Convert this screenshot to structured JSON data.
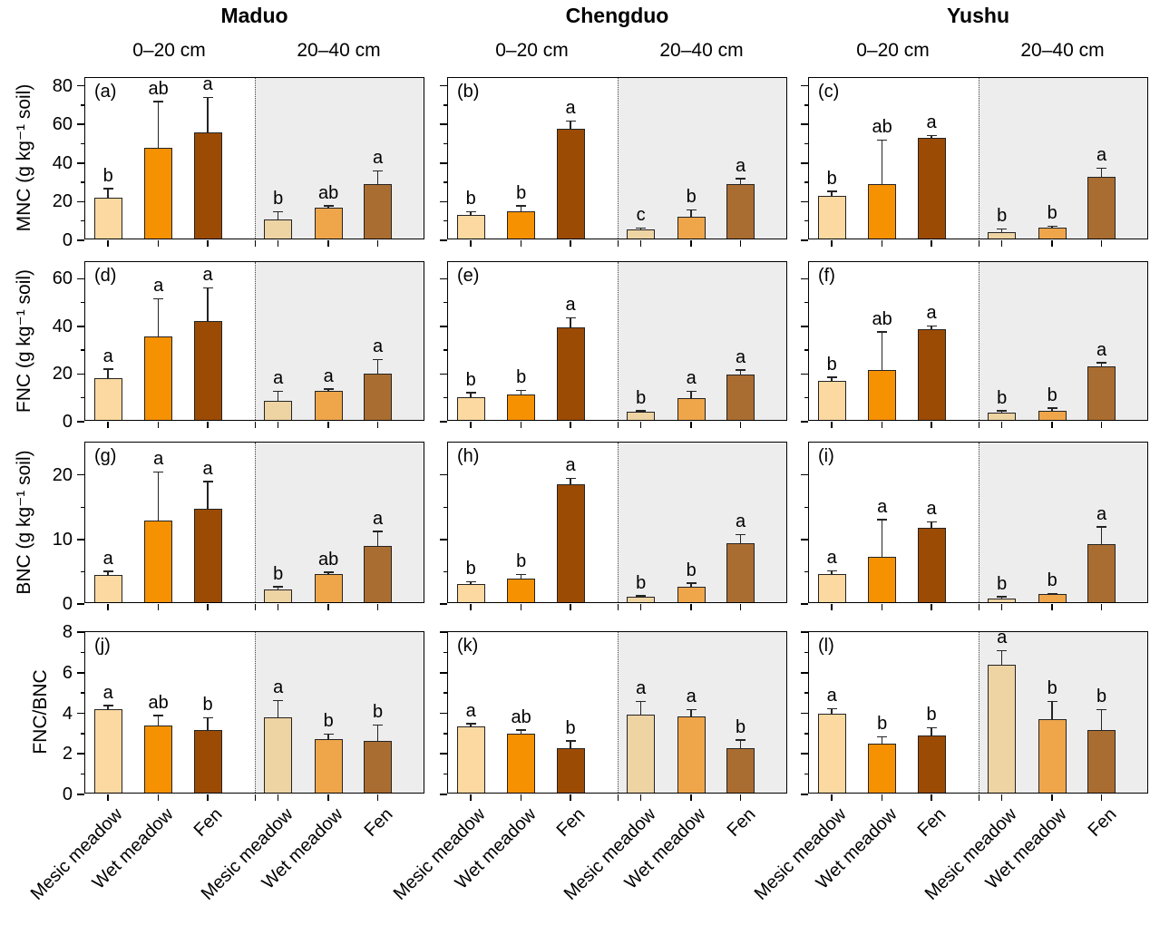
{
  "figure": {
    "sites": [
      "Maduo",
      "Chengduo",
      "Yushu"
    ],
    "depth_labels": [
      "0–20 cm",
      "20–40 cm"
    ],
    "group_labels": [
      "Mesic meadow",
      "Wet meadow",
      "Fen"
    ],
    "colors": {
      "depth_0_20_fills": [
        "#fcd9a0",
        "#f69102",
        "#9c4b05"
      ],
      "depth_20_40_fills": [
        "#eed3a3",
        "#efa64b",
        "#aa6d31"
      ],
      "shade_background": "#ededed",
      "axis": "#000000"
    }
  },
  "chart_data": [
    {
      "type": "bar",
      "ylabel": "MNC (g kg⁻¹ soil)",
      "ylim": [
        0,
        84
      ],
      "yticks_major": [
        0,
        20,
        40,
        60,
        80
      ],
      "yticks_minor": [
        10,
        30,
        50,
        70
      ],
      "categories": [
        "Mesic meadow",
        "Wet meadow",
        "Fen"
      ],
      "panels": [
        {
          "label": "(a)",
          "site": "Maduo",
          "depths": [
            {
              "depth": "0–20 cm",
              "values": [
                21,
                47,
                55
              ],
              "errors": [
                5,
                24,
                18
              ],
              "letters": [
                "b",
                "ab",
                "a"
              ]
            },
            {
              "depth": "20–40 cm",
              "values": [
                10,
                16,
                28
              ],
              "errors": [
                4,
                1,
                7
              ],
              "letters": [
                "b",
                "ab",
                "a"
              ]
            }
          ]
        },
        {
          "label": "(b)",
          "site": "Chengduo",
          "depths": [
            {
              "depth": "0–20 cm",
              "values": [
                12,
                14,
                57
              ],
              "errors": [
                2,
                3,
                4
              ],
              "letters": [
                "b",
                "b",
                "a"
              ]
            },
            {
              "depth": "20–40 cm",
              "values": [
                4.5,
                11.5,
                28
              ],
              "errors": [
                1,
                3.5,
                3
              ],
              "letters": [
                "c",
                "b",
                "a"
              ]
            }
          ]
        },
        {
          "label": "(c)",
          "site": "Yushu",
          "depths": [
            {
              "depth": "0–20 cm",
              "values": [
                22,
                28,
                52
              ],
              "errors": [
                2.5,
                23,
                1.5
              ],
              "letters": [
                "b",
                "ab",
                "a"
              ]
            },
            {
              "depth": "20–40 cm",
              "values": [
                3.5,
                5.5,
                32
              ],
              "errors": [
                1.5,
                1,
                4.5
              ],
              "letters": [
                "b",
                "b",
                "a"
              ]
            }
          ]
        }
      ]
    },
    {
      "type": "bar",
      "ylabel": "FNC (g kg⁻¹ soil)",
      "ylim": [
        0,
        67
      ],
      "yticks_major": [
        0,
        20,
        40,
        60
      ],
      "yticks_minor": [
        10,
        30,
        50
      ],
      "categories": [
        "Mesic meadow",
        "Wet meadow",
        "Fen"
      ],
      "panels": [
        {
          "label": "(d)",
          "site": "Maduo",
          "depths": [
            {
              "depth": "0–20 cm",
              "values": [
                17.5,
                35,
                41.5
              ],
              "errors": [
                4,
                16,
                14
              ],
              "letters": [
                "a",
                "a",
                "a"
              ]
            },
            {
              "depth": "20–40 cm",
              "values": [
                8,
                12,
                19.5
              ],
              "errors": [
                4,
                1,
                6
              ],
              "letters": [
                "a",
                "a",
                "a"
              ]
            }
          ]
        },
        {
          "label": "(e)",
          "site": "Chengduo",
          "depths": [
            {
              "depth": "0–20 cm",
              "values": [
                9.5,
                10.5,
                39
              ],
              "errors": [
                2,
                2,
                4
              ],
              "letters": [
                "b",
                "b",
                "a"
              ]
            },
            {
              "depth": "20–40 cm",
              "values": [
                3.5,
                9,
                19
              ],
              "errors": [
                0.5,
                3,
                2
              ],
              "letters": [
                "b",
                "a",
                "a"
              ]
            }
          ]
        },
        {
          "label": "(f)",
          "site": "Yushu",
          "depths": [
            {
              "depth": "0–20 cm",
              "values": [
                16.5,
                21,
                38
              ],
              "errors": [
                1.5,
                16,
                1.5
              ],
              "letters": [
                "b",
                "ab",
                "a"
              ]
            },
            {
              "depth": "20–40 cm",
              "values": [
                3,
                4,
                22.5
              ],
              "errors": [
                1,
                1,
                1.5
              ],
              "letters": [
                "b",
                "b",
                "a"
              ]
            }
          ]
        }
      ]
    },
    {
      "type": "bar",
      "ylabel": "BNC (g kg⁻¹ soil)",
      "ylim": [
        0,
        25
      ],
      "yticks_major": [
        0,
        10,
        20
      ],
      "yticks_minor": [
        5,
        15
      ],
      "categories": [
        "Mesic meadow",
        "Wet meadow",
        "Fen"
      ],
      "panels": [
        {
          "label": "(g)",
          "site": "Maduo",
          "depths": [
            {
              "depth": "0–20 cm",
              "values": [
                4.2,
                12.7,
                14.5
              ],
              "errors": [
                0.6,
                7.5,
                4.2
              ],
              "letters": [
                "a",
                "a",
                "a"
              ]
            },
            {
              "depth": "20–40 cm",
              "values": [
                2,
                4.4,
                8.7
              ],
              "errors": [
                0.4,
                0.3,
                2.3
              ],
              "letters": [
                "b",
                "ab",
                "a"
              ]
            }
          ]
        },
        {
          "label": "(h)",
          "site": "Chengduo",
          "depths": [
            {
              "depth": "0–20 cm",
              "values": [
                2.8,
                3.7,
                18.2
              ],
              "errors": [
                0.4,
                0.6,
                1
              ],
              "letters": [
                "b",
                "b",
                "a"
              ]
            },
            {
              "depth": "20–40 cm",
              "values": [
                0.9,
                2.4,
                9.2
              ],
              "errors": [
                0.15,
                0.6,
                1.3
              ],
              "letters": [
                "b",
                "b",
                "a"
              ]
            }
          ]
        },
        {
          "label": "(i)",
          "site": "Yushu",
          "depths": [
            {
              "depth": "0–20 cm",
              "values": [
                4.4,
                7,
                11.5
              ],
              "errors": [
                0.5,
                5.8,
                1
              ],
              "letters": [
                "a",
                "a",
                "a"
              ]
            },
            {
              "depth": "20–40 cm",
              "values": [
                0.6,
                1.2,
                9
              ],
              "errors": [
                0.3,
                0.15,
                2.7
              ],
              "letters": [
                "b",
                "b",
                "a"
              ]
            }
          ]
        }
      ]
    },
    {
      "type": "bar",
      "ylabel": "FNC/BNC",
      "ylim": [
        0,
        8
      ],
      "yticks_major": [
        0,
        2,
        4,
        6,
        8
      ],
      "yticks_minor": [
        1,
        3,
        5,
        7
      ],
      "categories": [
        "Mesic meadow",
        "Wet meadow",
        "Fen"
      ],
      "panels": [
        {
          "label": "(j)",
          "site": "Maduo",
          "depths": [
            {
              "depth": "0–20 cm",
              "values": [
                4.1,
                3.3,
                3.1
              ],
              "errors": [
                0.2,
                0.5,
                0.6
              ],
              "letters": [
                "a",
                "ab",
                "b"
              ]
            },
            {
              "depth": "20–40 cm",
              "values": [
                3.7,
                2.65,
                2.55
              ],
              "errors": [
                0.85,
                0.25,
                0.8
              ],
              "letters": [
                "a",
                "b",
                "b"
              ]
            }
          ]
        },
        {
          "label": "(k)",
          "site": "Chengduo",
          "depths": [
            {
              "depth": "0–20 cm",
              "values": [
                3.25,
                2.9,
                2.2
              ],
              "errors": [
                0.15,
                0.2,
                0.35
              ],
              "letters": [
                "a",
                "ab",
                "b"
              ]
            },
            {
              "depth": "20–40 cm",
              "values": [
                3.85,
                3.75,
                2.2
              ],
              "errors": [
                0.65,
                0.35,
                0.4
              ],
              "letters": [
                "a",
                "a",
                "b"
              ]
            }
          ]
        },
        {
          "label": "(l)",
          "site": "Yushu",
          "depths": [
            {
              "depth": "0–20 cm",
              "values": [
                3.9,
                2.4,
                2.8
              ],
              "errors": [
                0.25,
                0.35,
                0.4
              ],
              "letters": [
                "a",
                "b",
                "b"
              ]
            },
            {
              "depth": "20–40 cm",
              "values": [
                6.3,
                3.6,
                3.1
              ],
              "errors": [
                0.7,
                0.9,
                1.0
              ],
              "letters": [
                "a",
                "b",
                "b"
              ]
            }
          ]
        }
      ]
    }
  ]
}
